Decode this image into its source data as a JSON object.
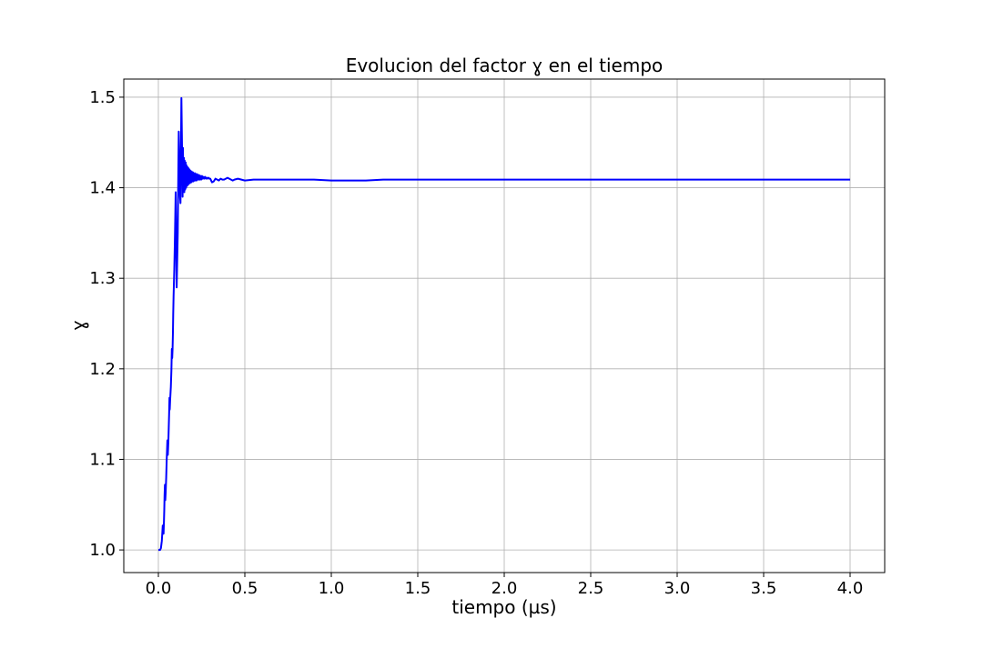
{
  "chart_data": {
    "type": "line",
    "title": "Evolucion del factor ɣ en el tiempo",
    "xlabel": "tiempo (µs)",
    "ylabel": "ɣ",
    "xlim": [
      -0.2,
      4.2
    ],
    "ylim": [
      0.975,
      1.52
    ],
    "xticks": [
      0.0,
      0.5,
      1.0,
      1.5,
      2.0,
      2.5,
      3.0,
      3.5,
      4.0
    ],
    "xtick_labels": [
      "0.0",
      "0.5",
      "1.0",
      "1.5",
      "2.0",
      "2.5",
      "3.0",
      "3.5",
      "4.0"
    ],
    "yticks": [
      1.0,
      1.1,
      1.2,
      1.3,
      1.4,
      1.5
    ],
    "ytick_labels": [
      "1.0",
      "1.1",
      "1.2",
      "1.3",
      "1.4",
      "1.5"
    ],
    "grid": true,
    "series": [
      {
        "color": "#0000ff",
        "x": [
          0.0,
          0.005,
          0.01,
          0.015,
          0.02,
          0.025,
          0.03,
          0.032,
          0.034,
          0.036,
          0.038,
          0.04,
          0.042,
          0.045,
          0.048,
          0.052,
          0.055,
          0.058,
          0.06,
          0.062,
          0.064,
          0.066,
          0.068,
          0.072,
          0.075,
          0.078,
          0.08,
          0.082,
          0.084,
          0.086,
          0.088,
          0.092,
          0.095,
          0.098,
          0.1,
          0.102,
          0.104,
          0.106,
          0.108,
          0.112,
          0.115,
          0.118,
          0.12,
          0.122,
          0.125,
          0.128,
          0.13,
          0.133,
          0.136,
          0.138,
          0.14,
          0.142,
          0.145,
          0.148,
          0.15,
          0.152,
          0.155,
          0.158,
          0.16,
          0.162,
          0.165,
          0.168,
          0.17,
          0.172,
          0.174,
          0.176,
          0.178,
          0.18,
          0.182,
          0.184,
          0.186,
          0.188,
          0.19,
          0.192,
          0.194,
          0.196,
          0.198,
          0.2,
          0.203,
          0.206,
          0.209,
          0.212,
          0.215,
          0.218,
          0.221,
          0.224,
          0.227,
          0.23,
          0.233,
          0.236,
          0.24,
          0.244,
          0.248,
          0.252,
          0.256,
          0.26,
          0.265,
          0.27,
          0.275,
          0.28,
          0.285,
          0.29,
          0.295,
          0.3,
          0.31,
          0.32,
          0.33,
          0.34,
          0.35,
          0.36,
          0.37,
          0.38,
          0.39,
          0.4,
          0.41,
          0.42,
          0.43,
          0.44,
          0.46,
          0.48,
          0.5,
          0.55,
          0.6,
          0.7,
          0.8,
          0.9,
          1.0,
          1.1,
          1.2,
          1.3,
          1.5,
          2.0,
          2.5,
          3.0,
          3.5,
          4.0
        ],
        "y": [
          1.0,
          1.0,
          1.0,
          1.002,
          1.01,
          1.027,
          1.018,
          1.03,
          1.045,
          1.06,
          1.072,
          1.055,
          1.063,
          1.08,
          1.098,
          1.121,
          1.105,
          1.12,
          1.135,
          1.15,
          1.168,
          1.155,
          1.165,
          1.18,
          1.198,
          1.222,
          1.212,
          1.222,
          1.24,
          1.26,
          1.28,
          1.31,
          1.34,
          1.37,
          1.395,
          1.36,
          1.32,
          1.29,
          1.31,
          1.35,
          1.405,
          1.462,
          1.44,
          1.41,
          1.39,
          1.383,
          1.43,
          1.499,
          1.46,
          1.43,
          1.39,
          1.444,
          1.4,
          1.433,
          1.395,
          1.43,
          1.398,
          1.428,
          1.4,
          1.425,
          1.402,
          1.423,
          1.403,
          1.422,
          1.404,
          1.421,
          1.405,
          1.42,
          1.405,
          1.419,
          1.406,
          1.418,
          1.406,
          1.418,
          1.407,
          1.417,
          1.407,
          1.417,
          1.407,
          1.416,
          1.408,
          1.416,
          1.408,
          1.415,
          1.408,
          1.415,
          1.409,
          1.414,
          1.409,
          1.414,
          1.409,
          1.413,
          1.409,
          1.413,
          1.41,
          1.412,
          1.41,
          1.412,
          1.41,
          1.411,
          1.41,
          1.411,
          1.41,
          1.41,
          1.406,
          1.407,
          1.41,
          1.409,
          1.408,
          1.41,
          1.409,
          1.409,
          1.41,
          1.411,
          1.41,
          1.409,
          1.408,
          1.409,
          1.41,
          1.409,
          1.408,
          1.409,
          1.409,
          1.409,
          1.409,
          1.409,
          1.408,
          1.408,
          1.408,
          1.409,
          1.409,
          1.409,
          1.409,
          1.409,
          1.409,
          1.409
        ]
      }
    ]
  }
}
